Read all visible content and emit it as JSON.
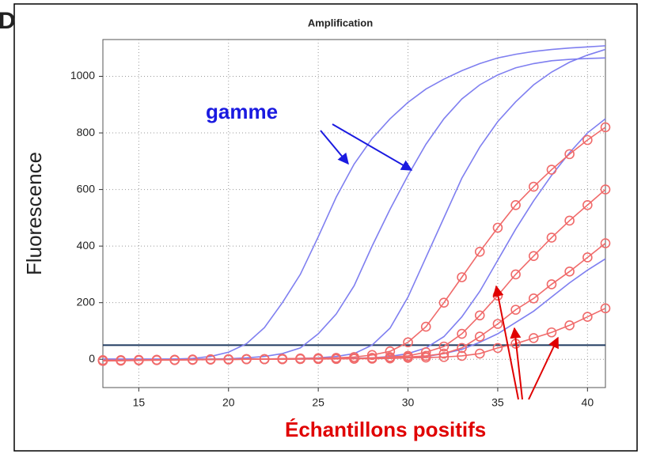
{
  "panel_label": "D",
  "chart_data": {
    "type": "line",
    "title": "Amplification",
    "y_label": "Fluorescence",
    "annotations": [
      "gamme",
      "Échantillons positifs"
    ],
    "x": [
      13,
      14,
      15,
      16,
      17,
      18,
      19,
      20,
      21,
      22,
      23,
      24,
      25,
      26,
      27,
      28,
      29,
      30,
      31,
      32,
      33,
      34,
      35,
      36,
      37,
      38,
      39,
      40,
      41
    ],
    "xlim": [
      13,
      41
    ],
    "xticks": [
      15,
      20,
      25,
      30,
      35,
      40
    ],
    "ylim": [
      -100,
      1130
    ],
    "yticks": [
      0,
      200,
      400,
      600,
      800,
      1000
    ],
    "grid": true,
    "threshold": 50,
    "threshold_color": "#1f3a5f",
    "series": [
      {
        "color": "#7f7ff0",
        "marker": false,
        "values": [
          0,
          0,
          0,
          0,
          1,
          3,
          10,
          25,
          55,
          112,
          200,
          300,
          433,
          573,
          690,
          780,
          850,
          908,
          955,
          990,
          1020,
          1045,
          1065,
          1078,
          1088,
          1095,
          1100,
          1104,
          1108
        ]
      },
      {
        "color": "#7f7ff0",
        "marker": false,
        "values": [
          0,
          0,
          0,
          0,
          0,
          0,
          1,
          2,
          5,
          10,
          20,
          40,
          90,
          160,
          260,
          400,
          530,
          650,
          760,
          850,
          920,
          970,
          1005,
          1030,
          1045,
          1055,
          1060,
          1063,
          1065
        ]
      },
      {
        "color": "#7f7ff0",
        "marker": false,
        "values": [
          0,
          0,
          0,
          0,
          0,
          0,
          0,
          0,
          1,
          1,
          2,
          3,
          5,
          10,
          20,
          50,
          110,
          220,
          360,
          500,
          640,
          750,
          840,
          910,
          970,
          1015,
          1050,
          1075,
          1095
        ]
      },
      {
        "color": "#7f7ff0",
        "marker": false,
        "values": [
          0,
          0,
          0,
          0,
          0,
          0,
          0,
          0,
          0,
          0,
          1,
          1,
          2,
          3,
          4,
          5,
          10,
          20,
          40,
          80,
          150,
          240,
          350,
          460,
          560,
          650,
          730,
          800,
          850
        ]
      },
      {
        "color": "#7f7ff0",
        "marker": false,
        "values": [
          0,
          0,
          0,
          0,
          0,
          0,
          0,
          0,
          0,
          0,
          0,
          1,
          1,
          2,
          3,
          4,
          4,
          5,
          10,
          20,
          35,
          60,
          90,
          130,
          170,
          220,
          270,
          315,
          355
        ]
      },
      {
        "color": "#f06a6a",
        "marker": true,
        "values": [
          -5,
          -4,
          -3,
          -2,
          -2,
          -1,
          0,
          0,
          1,
          1,
          2,
          3,
          4,
          5,
          8,
          15,
          28,
          60,
          115,
          200,
          290,
          380,
          465,
          545,
          610,
          670,
          725,
          775,
          820
        ]
      },
      {
        "color": "#f06a6a",
        "marker": true,
        "values": [
          -6,
          -5,
          -4,
          -3,
          -3,
          -2,
          -1,
          -1,
          0,
          0,
          1,
          1,
          2,
          2,
          3,
          5,
          8,
          12,
          25,
          45,
          90,
          155,
          225,
          300,
          365,
          430,
          490,
          545,
          600
        ]
      },
      {
        "color": "#f06a6a",
        "marker": true,
        "values": [
          -4,
          -4,
          -3,
          -3,
          -2,
          -2,
          -1,
          -1,
          0,
          0,
          0,
          1,
          1,
          2,
          2,
          3,
          5,
          8,
          12,
          20,
          40,
          80,
          125,
          175,
          215,
          265,
          310,
          360,
          410
        ]
      },
      {
        "color": "#f06a6a",
        "marker": true,
        "values": [
          -3,
          -3,
          -2,
          -2,
          -2,
          -1,
          -1,
          0,
          0,
          0,
          0,
          1,
          1,
          1,
          2,
          2,
          3,
          5,
          6,
          8,
          12,
          20,
          40,
          55,
          75,
          95,
          120,
          150,
          180
        ]
      }
    ]
  }
}
